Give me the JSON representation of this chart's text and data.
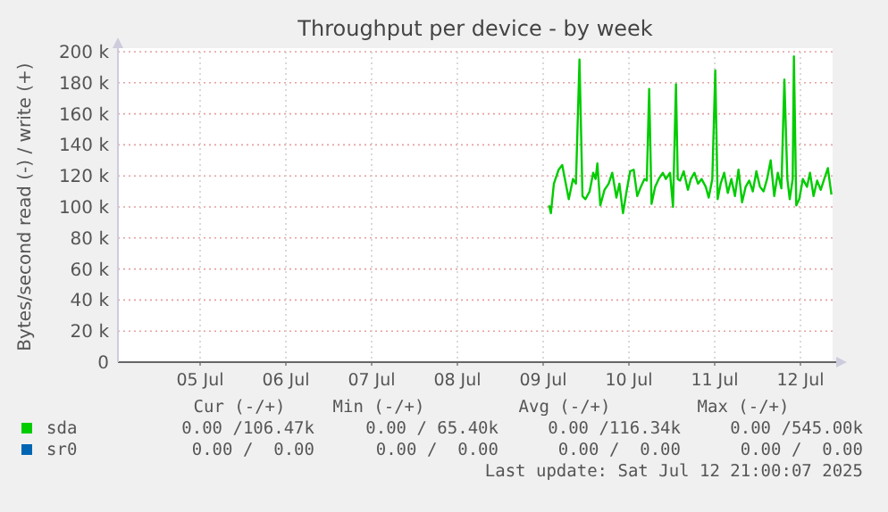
{
  "chart_data": {
    "type": "line",
    "title": "Throughput per device - by week",
    "ylabel": "Bytes/second read (-) / write (+)",
    "xlim": [
      "2025-07-04T13:00",
      "2025-07-12T21:00"
    ],
    "xticks": [
      {
        "value": "2025-07-05T12:00",
        "label": "05 Jul"
      },
      {
        "value": "2025-07-06T12:00",
        "label": "06 Jul"
      },
      {
        "value": "2025-07-07T12:00",
        "label": "07 Jul"
      },
      {
        "value": "2025-07-08T12:00",
        "label": "08 Jul"
      },
      {
        "value": "2025-07-09T12:00",
        "label": "09 Jul"
      },
      {
        "value": "2025-07-10T12:00",
        "label": "10 Jul"
      },
      {
        "value": "2025-07-11T12:00",
        "label": "11 Jul"
      },
      {
        "value": "2025-07-12T12:00",
        "label": "12 Jul"
      }
    ],
    "ylim": [
      0,
      200000
    ],
    "yticks": [
      {
        "value": 0,
        "label": "0"
      },
      {
        "value": 20000,
        "label": "20 k"
      },
      {
        "value": 40000,
        "label": "40 k"
      },
      {
        "value": 60000,
        "label": "60 k"
      },
      {
        "value": 80000,
        "label": "80 k"
      },
      {
        "value": 100000,
        "label": "100 k"
      },
      {
        "value": 120000,
        "label": "120 k"
      },
      {
        "value": 140000,
        "label": "140 k"
      },
      {
        "value": 160000,
        "label": "160 k"
      },
      {
        "value": 180000,
        "label": "180 k"
      },
      {
        "value": 200000,
        "label": "200 k"
      }
    ],
    "grid": true,
    "legend": "bottom",
    "line_style": "solid",
    "x": [
      "2025-07-09T13:40",
      "2025-07-09T14:10",
      "2025-07-09T15:00",
      "2025-07-09T16:20",
      "2025-07-09T17:20",
      "2025-07-09T18:20",
      "2025-07-09T19:10",
      "2025-07-09T20:20",
      "2025-07-09T21:10",
      "2025-07-09T22:10",
      "2025-07-09T23:00",
      "2025-07-09T23:50",
      "2025-07-10T01:00",
      "2025-07-10T02:00",
      "2025-07-10T02:40",
      "2025-07-10T03:10",
      "2025-07-10T04:00",
      "2025-07-10T05:10",
      "2025-07-10T06:20",
      "2025-07-10T07:20",
      "2025-07-10T08:30",
      "2025-07-10T09:20",
      "2025-07-10T10:20",
      "2025-07-10T11:20",
      "2025-07-10T12:20",
      "2025-07-10T13:20",
      "2025-07-10T14:20",
      "2025-07-10T15:20",
      "2025-07-10T16:20",
      "2025-07-10T17:00",
      "2025-07-10T17:40",
      "2025-07-10T18:20",
      "2025-07-10T19:20",
      "2025-07-10T20:20",
      "2025-07-10T21:30",
      "2025-07-10T22:20",
      "2025-07-10T23:30",
      "2025-07-11T00:20",
      "2025-07-11T01:10",
      "2025-07-11T01:40",
      "2025-07-11T02:20",
      "2025-07-11T03:20",
      "2025-07-11T04:30",
      "2025-07-11T05:20",
      "2025-07-11T06:20",
      "2025-07-11T07:20",
      "2025-07-11T08:20",
      "2025-07-11T09:30",
      "2025-07-11T10:20",
      "2025-07-11T11:20",
      "2025-07-11T12:10",
      "2025-07-11T12:50",
      "2025-07-11T13:40",
      "2025-07-11T14:40",
      "2025-07-11T15:40",
      "2025-07-11T16:40",
      "2025-07-11T17:40",
      "2025-07-11T18:40",
      "2025-07-11T19:40",
      "2025-07-11T20:40",
      "2025-07-11T21:40",
      "2025-07-11T22:40",
      "2025-07-11T23:40",
      "2025-07-12T00:40",
      "2025-07-12T01:40",
      "2025-07-12T02:40",
      "2025-07-12T03:40",
      "2025-07-12T04:40",
      "2025-07-12T05:40",
      "2025-07-12T06:40",
      "2025-07-12T07:30",
      "2025-07-12T08:20",
      "2025-07-12T09:00",
      "2025-07-12T09:50",
      "2025-07-12T10:10",
      "2025-07-12T10:50",
      "2025-07-12T11:40",
      "2025-07-12T12:40",
      "2025-07-12T13:50",
      "2025-07-12T14:40",
      "2025-07-12T15:40",
      "2025-07-12T16:40",
      "2025-07-12T17:40",
      "2025-07-12T18:40",
      "2025-07-12T19:40",
      "2025-07-12T20:40"
    ],
    "series": [
      {
        "name": "sda",
        "color": "#00cc00",
        "values": [
          101000,
          96000,
          115000,
          124000,
          127000,
          115000,
          105000,
          118000,
          115000,
          195000,
          107000,
          105000,
          110000,
          122000,
          118000,
          128000,
          101000,
          111000,
          115000,
          122000,
          106000,
          115000,
          96000,
          110000,
          123000,
          124000,
          107000,
          113000,
          118000,
          117000,
          176000,
          102000,
          113000,
          118000,
          122000,
          118000,
          122000,
          100000,
          179000,
          118000,
          117000,
          123000,
          111000,
          118000,
          122000,
          115000,
          118000,
          113000,
          106000,
          118000,
          188000,
          105000,
          115000,
          122000,
          109000,
          118000,
          107000,
          124000,
          103000,
          113000,
          117000,
          110000,
          123000,
          113000,
          110000,
          118000,
          130000,
          107000,
          122000,
          112000,
          182000,
          118000,
          105000,
          118000,
          197000,
          101000,
          105000,
          118000,
          113000,
          122000,
          107000,
          117000,
          111000,
          118000,
          125000,
          108000
        ]
      },
      {
        "name": "sr0",
        "color": "#0066b3",
        "values": [
          null,
          null,
          null,
          null,
          null,
          null,
          null,
          null,
          null,
          null,
          null,
          null,
          null,
          null,
          null,
          null,
          null,
          null,
          null,
          null,
          null,
          null,
          null,
          null,
          null,
          null,
          null,
          null,
          null,
          null,
          null,
          null,
          null,
          null,
          null,
          null,
          null,
          null,
          null,
          null,
          null,
          null,
          null,
          null,
          null,
          null,
          null,
          null,
          null,
          null,
          null,
          null,
          null,
          null,
          null,
          null,
          null,
          null,
          null,
          null,
          null,
          null,
          null,
          null,
          null,
          null,
          null,
          null,
          null,
          null,
          null,
          null,
          null,
          null,
          null,
          null,
          null,
          null,
          null,
          null,
          null,
          null,
          null,
          null,
          null,
          null
        ]
      }
    ],
    "annotations": [
      "Cur (-/+)",
      "Min (-/+)",
      "Avg (-/+)",
      "Max (-/+)",
      "0.00 /106.47k",
      "0.00 / 65.40k",
      "0.00 /116.34k",
      "0.00 /545.00k",
      "0.00 /  0.00",
      "0.00 /  0.00",
      "0.00 /  0.00",
      "0.00 /  0.00",
      "Last update: Sat Jul 12 21:00:07 2025"
    ]
  }
}
